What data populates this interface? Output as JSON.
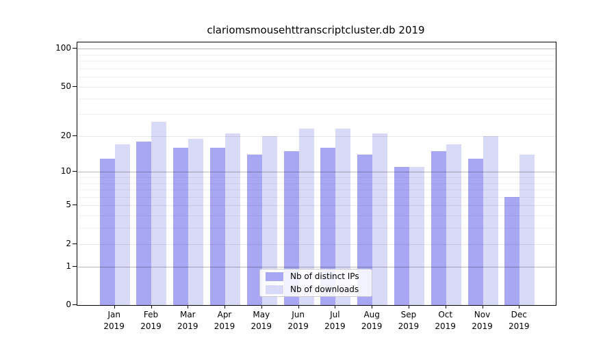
{
  "chart_data": {
    "type": "bar",
    "title": "clariomsmousehttranscriptcluster.db 2019",
    "categories": [
      "Jan",
      "Feb",
      "Mar",
      "Apr",
      "May",
      "Jun",
      "Jul",
      "Aug",
      "Sep",
      "Oct",
      "Nov",
      "Dec"
    ],
    "category_year": "2019",
    "series": [
      {
        "name": "Nb of distinct IPs",
        "color": "#a7a7f3",
        "values": [
          13,
          18,
          16,
          16,
          14,
          15,
          16,
          14,
          11,
          15,
          13,
          6
        ]
      },
      {
        "name": "Nb of downloads",
        "color": "#d9d9f8",
        "values": [
          17,
          26,
          19,
          21,
          20,
          23,
          23,
          21,
          11,
          17,
          20,
          14
        ]
      }
    ],
    "yscale": "log1p",
    "ylim": [
      0,
      112
    ],
    "ytick_labels": [
      "0",
      "1",
      "2",
      "5",
      "10",
      "20",
      "50",
      "100"
    ],
    "ytick_label_values": [
      0,
      1,
      2,
      5,
      10,
      20,
      50,
      100
    ],
    "ytick_major_values": [
      1,
      10,
      100
    ],
    "ytick_mid_values": [
      2,
      5,
      20,
      50
    ],
    "ytick_minor_values": [
      3,
      4,
      6,
      7,
      8,
      9,
      30,
      40,
      60,
      70,
      80,
      90
    ],
    "grid": true,
    "legend_position": "lower center",
    "grid_major_color": "#b7b7b7",
    "grid_mid_color": "#e8e8e8",
    "grid_minor_color": "#f2f2f2"
  }
}
